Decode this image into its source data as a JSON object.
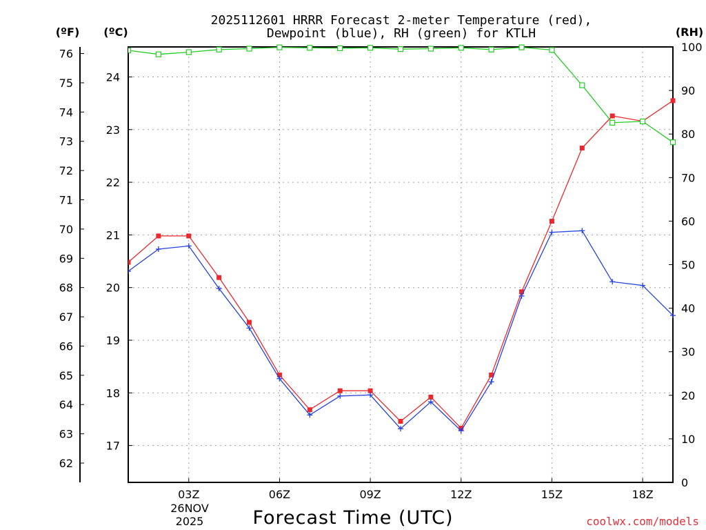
{
  "chart_data": {
    "type": "line",
    "title_line1": "2025112601 HRRR Forecast 2-meter Temperature (red),",
    "title_line2": "Dewpoint (blue), RH (green) for KTLH",
    "left_unit_f": "(ºF)",
    "left_unit_c": "(ºC)",
    "right_unit": "(RH)",
    "xlabel": "Forecast Time (UTC)",
    "watermark": "coolwx.com/models",
    "date_day": "26NOV",
    "date_year": "2025",
    "x_range_hours": [
      1,
      19
    ],
    "x_ticks": [
      {
        "hour": 3,
        "label": "03Z"
      },
      {
        "hour": 6,
        "label": "06Z"
      },
      {
        "hour": 9,
        "label": "09Z"
      },
      {
        "hour": 12,
        "label": "12Z"
      },
      {
        "hour": 15,
        "label": "15Z"
      },
      {
        "hour": 18,
        "label": "18Z"
      }
    ],
    "celsius_range": [
      16.3,
      24.57
    ],
    "celsius_ticks": [
      17,
      18,
      19,
      20,
      21,
      22,
      23,
      24
    ],
    "fahrenheit_ticks": [
      62,
      63,
      64,
      65,
      66,
      67,
      68,
      69,
      70,
      71,
      72,
      73,
      74,
      75,
      76
    ],
    "rh_range": [
      0,
      100
    ],
    "rh_ticks": [
      0,
      10,
      20,
      30,
      40,
      50,
      60,
      70,
      80,
      90,
      100
    ],
    "x_hours": [
      1,
      2,
      3,
      4,
      5,
      6,
      7,
      8,
      9,
      10,
      11,
      12,
      13,
      14,
      15,
      16,
      17,
      18,
      19
    ],
    "series": [
      {
        "name": "Temperature",
        "unit": "C",
        "color": "#e8292e",
        "values": [
          20.48,
          20.98,
          20.98,
          20.19,
          19.34,
          18.34,
          17.68,
          18.04,
          18.04,
          17.46,
          17.92,
          17.33,
          18.34,
          19.92,
          21.26,
          22.65,
          23.26,
          23.16,
          23.55
        ]
      },
      {
        "name": "Dewpoint",
        "unit": "C",
        "color": "#2442e0",
        "values": [
          20.31,
          20.73,
          20.79,
          19.98,
          19.23,
          18.27,
          17.58,
          17.94,
          17.96,
          17.32,
          17.83,
          17.28,
          18.21,
          19.84,
          21.05,
          21.08,
          20.11,
          20.04,
          19.47
        ]
      },
      {
        "name": "RH",
        "unit": "%",
        "color": "#22cc22",
        "values": [
          99.2,
          98.3,
          98.8,
          99.4,
          99.6,
          99.9,
          99.8,
          99.7,
          99.8,
          99.5,
          99.6,
          99.8,
          99.4,
          99.9,
          99.3,
          91.2,
          82.6,
          82.9,
          78.1
        ]
      }
    ]
  }
}
